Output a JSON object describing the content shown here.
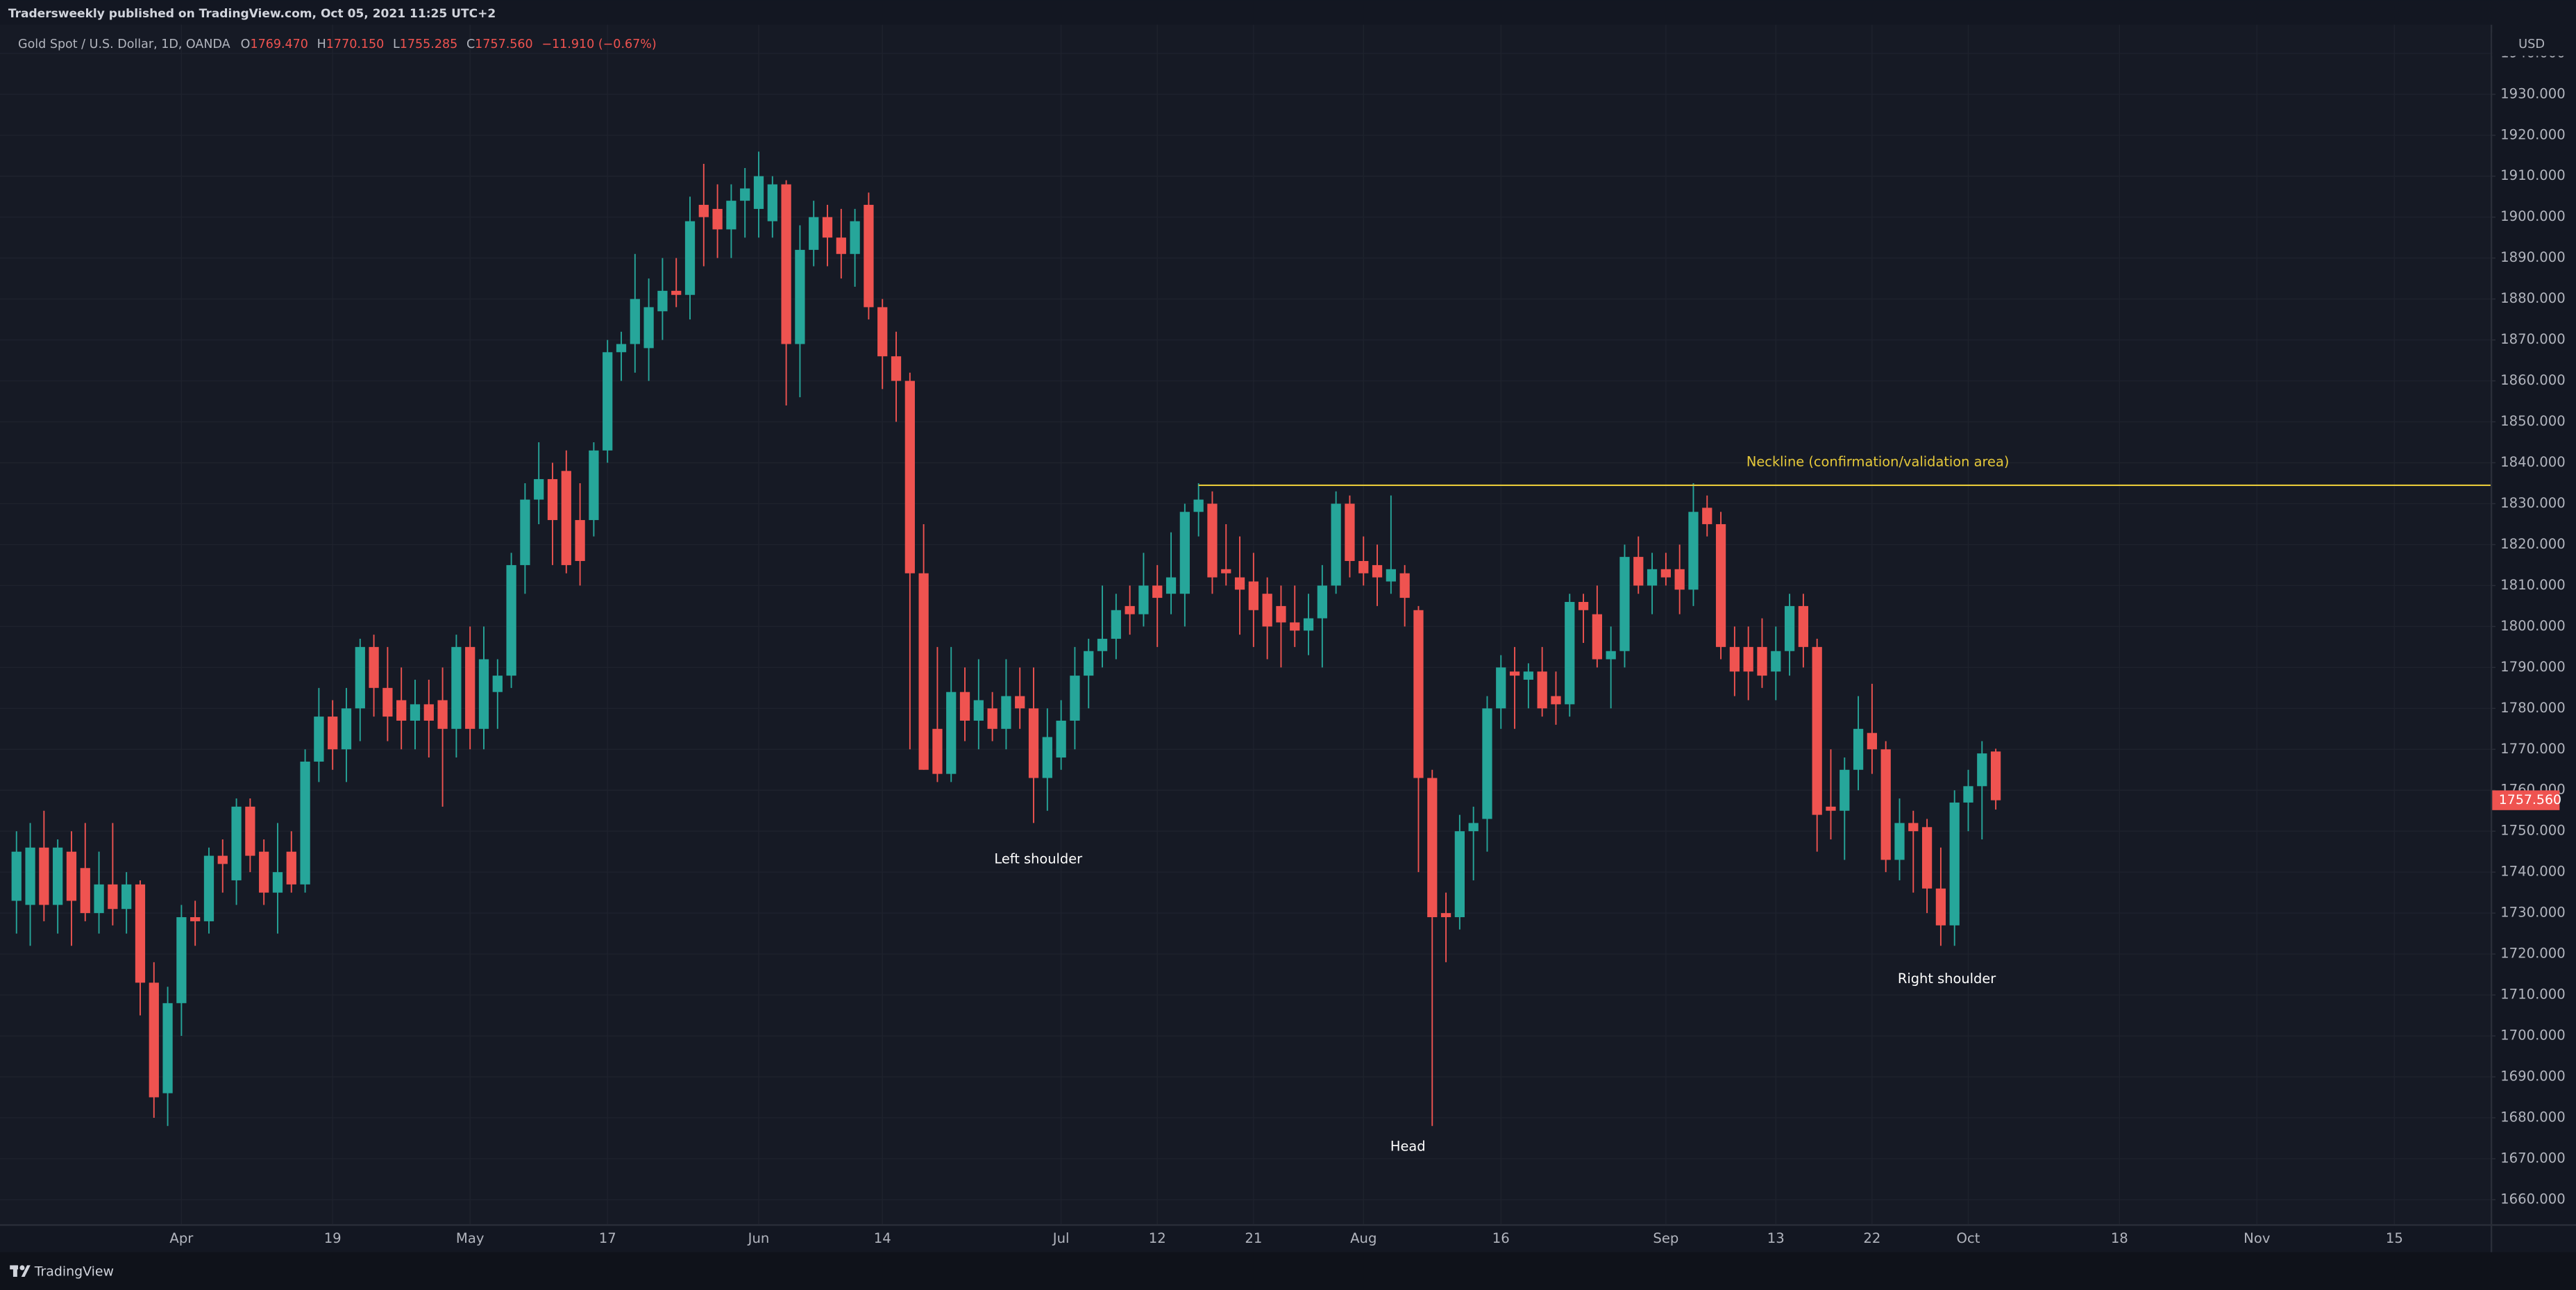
{
  "header": {
    "byline": "Tradersweekly published on TradingView.com, Oct 05, 2021 11:25 UTC+2",
    "symbol": "Gold Spot / U.S. Dollar, 1D, OANDA",
    "ohlc_letters": [
      "O",
      "H",
      "L",
      "C"
    ],
    "ohlc_values": [
      "1769.470",
      "1770.150",
      "1755.285",
      "1757.560"
    ],
    "change": "−11.910 (−0.67%)"
  },
  "chart_data": {
    "type": "candlestick",
    "up_color": "#26a69a",
    "down_color": "#ef5350",
    "open": [
      1733,
      1732,
      1746,
      1732,
      1745,
      1741,
      1730,
      1737,
      1731,
      1737,
      1713,
      1686,
      1708,
      1729,
      1728,
      1744,
      1738,
      1756,
      1745,
      1735,
      1745,
      1737,
      1767,
      1778,
      1770,
      1780,
      1795,
      1785,
      1782,
      1777,
      1781,
      1782,
      1775,
      1795,
      1775,
      1784,
      1788,
      1815,
      1831,
      1836,
      1838,
      1826,
      1826,
      1843,
      1867,
      1869,
      1868,
      1877,
      1882,
      1881,
      1903,
      1902,
      1897,
      1904,
      1902,
      1899,
      1908,
      1869,
      1892,
      1900,
      1895,
      1891,
      1903,
      1878,
      1866,
      1860,
      1813,
      1775,
      1764,
      1784,
      1777,
      1780,
      1775,
      1783,
      1780,
      1763,
      1768,
      1777,
      1788,
      1794,
      1797,
      1805,
      1803,
      1810,
      1808,
      1808,
      1828,
      1830,
      1814,
      1812,
      1811,
      1808,
      1805,
      1801,
      1799,
      1802,
      1810,
      1830,
      1816,
      1815,
      1811,
      1813,
      1804,
      1763,
      1730,
      1729,
      1750,
      1753,
      1780,
      1789,
      1787,
      1789,
      1783,
      1781,
      1806,
      1803,
      1792,
      1794,
      1817,
      1810,
      1814,
      1814,
      1809,
      1829,
      1825,
      1795,
      1795,
      1795,
      1789,
      1794,
      1805,
      1795,
      1756,
      1755,
      1765,
      1774,
      1770,
      1743,
      1752,
      1751,
      1736,
      1727,
      1757,
      1761,
      1769.47
    ],
    "high": [
      1750,
      1752,
      1755,
      1748,
      1750,
      1752,
      1745,
      1752,
      1740,
      1738,
      1718,
      1712,
      1732,
      1733,
      1746,
      1748,
      1758,
      1758,
      1748,
      1752,
      1750,
      1770,
      1785,
      1782,
      1785,
      1797,
      1798,
      1795,
      1790,
      1787,
      1787,
      1790,
      1798,
      1800,
      1800,
      1792,
      1818,
      1835,
      1845,
      1840,
      1843,
      1835,
      1845,
      1870,
      1872,
      1891,
      1885,
      1890,
      1890,
      1905,
      1913,
      1908,
      1908,
      1912,
      1916,
      1910,
      1909,
      1898,
      1904,
      1903,
      1902,
      1902,
      1906,
      1880,
      1872,
      1862,
      1825,
      1795,
      1795,
      1790,
      1792,
      1784,
      1792,
      1790,
      1790,
      1780,
      1782,
      1795,
      1797,
      1810,
      1808,
      1810,
      1818,
      1815,
      1823,
      1830,
      1835,
      1833,
      1825,
      1822,
      1818,
      1812,
      1810,
      1810,
      1808,
      1815,
      1833,
      1832,
      1822,
      1820,
      1832,
      1815,
      1805,
      1765,
      1735,
      1754,
      1756,
      1783,
      1793,
      1795,
      1791,
      1795,
      1789,
      1808,
      1808,
      1810,
      1800,
      1820,
      1822,
      1818,
      1818,
      1820,
      1835,
      1832,
      1828,
      1800,
      1800,
      1802,
      1800,
      1808,
      1808,
      1797,
      1770,
      1768,
      1783,
      1786,
      1772,
      1758,
      1755,
      1753,
      1746,
      1760,
      1765,
      1772,
      1770.15
    ],
    "low": [
      1725,
      1722,
      1728,
      1725,
      1722,
      1728,
      1725,
      1727,
      1725,
      1705,
      1680,
      1678,
      1700,
      1722,
      1725,
      1735,
      1732,
      1740,
      1732,
      1725,
      1735,
      1735,
      1762,
      1765,
      1762,
      1772,
      1778,
      1772,
      1770,
      1770,
      1768,
      1756,
      1768,
      1770,
      1770,
      1775,
      1785,
      1808,
      1825,
      1815,
      1813,
      1810,
      1822,
      1840,
      1860,
      1862,
      1860,
      1870,
      1878,
      1875,
      1888,
      1890,
      1890,
      1895,
      1895,
      1895,
      1854,
      1856,
      1888,
      1888,
      1885,
      1883,
      1875,
      1858,
      1850,
      1770,
      1765,
      1762,
      1762,
      1772,
      1770,
      1772,
      1770,
      1775,
      1752,
      1755,
      1765,
      1770,
      1780,
      1790,
      1792,
      1798,
      1800,
      1795,
      1803,
      1800,
      1822,
      1808,
      1810,
      1798,
      1795,
      1792,
      1790,
      1795,
      1793,
      1790,
      1808,
      1812,
      1810,
      1805,
      1808,
      1800,
      1740,
      1678,
      1718,
      1726,
      1738,
      1745,
      1775,
      1775,
      1780,
      1778,
      1776,
      1778,
      1796,
      1790,
      1780,
      1790,
      1808,
      1803,
      1810,
      1803,
      1805,
      1822,
      1792,
      1783,
      1782,
      1785,
      1782,
      1788,
      1790,
      1745,
      1748,
      1743,
      1760,
      1764,
      1740,
      1738,
      1735,
      1730,
      1722,
      1722,
      1750,
      1748,
      1755.285
    ],
    "close": [
      1745,
      1746,
      1732,
      1746,
      1733,
      1730,
      1737,
      1731,
      1737,
      1713,
      1685,
      1708,
      1729,
      1728,
      1744,
      1742,
      1756,
      1744,
      1735,
      1740,
      1737,
      1767,
      1778,
      1770,
      1780,
      1795,
      1785,
      1778,
      1777,
      1781,
      1777,
      1775,
      1795,
      1775,
      1792,
      1788,
      1815,
      1831,
      1836,
      1826,
      1815,
      1816,
      1843,
      1867,
      1869,
      1880,
      1878,
      1882,
      1881,
      1899,
      1900,
      1897,
      1904,
      1907,
      1910,
      1908,
      1869,
      1892,
      1900,
      1895,
      1891,
      1899,
      1878,
      1866,
      1860,
      1813,
      1765,
      1764,
      1784,
      1777,
      1782,
      1775,
      1783,
      1780,
      1763,
      1773,
      1777,
      1788,
      1794,
      1797,
      1804,
      1803,
      1810,
      1807,
      1812,
      1828,
      1831,
      1812,
      1813,
      1809,
      1804,
      1800,
      1801,
      1799,
      1802,
      1810,
      1830,
      1816,
      1813,
      1812,
      1814,
      1807,
      1763,
      1729,
      1729,
      1750,
      1752,
      1780,
      1790,
      1788,
      1789,
      1780,
      1781,
      1806,
      1804,
      1792,
      1794,
      1817,
      1810,
      1814,
      1812,
      1809,
      1828,
      1825,
      1795,
      1789,
      1789,
      1788,
      1794,
      1805,
      1795,
      1754,
      1755,
      1765,
      1775,
      1770,
      1743,
      1752,
      1750,
      1736,
      1727,
      1757,
      1761,
      1769,
      1757.56
    ],
    "xlim": [
      -1.2,
      180
    ],
    "xticks": [
      {
        "value": 12,
        "label": "Apr"
      },
      {
        "value": 23,
        "label": "19"
      },
      {
        "value": 33,
        "label": "May"
      },
      {
        "value": 43,
        "label": "17"
      },
      {
        "value": 54,
        "label": "Jun"
      },
      {
        "value": 63,
        "label": "14"
      },
      {
        "value": 76,
        "label": "Jul"
      },
      {
        "value": 83,
        "label": "12"
      },
      {
        "value": 90,
        "label": "21"
      },
      {
        "value": 98,
        "label": "Aug"
      },
      {
        "value": 108,
        "label": "16"
      },
      {
        "value": 120,
        "label": "Sep"
      },
      {
        "value": 128,
        "label": "13"
      },
      {
        "value": 135,
        "label": "22"
      },
      {
        "value": 142,
        "label": "Oct"
      },
      {
        "value": 153,
        "label": "18"
      },
      {
        "value": 163,
        "label": "Nov"
      },
      {
        "value": 173,
        "label": "15"
      }
    ],
    "ylim": [
      1654,
      1947
    ],
    "yticks": [
      {
        "value": 1660,
        "label": "1660.000"
      },
      {
        "value": 1670,
        "label": "1670.000"
      },
      {
        "value": 1680,
        "label": "1680.000"
      },
      {
        "value": 1690,
        "label": "1690.000"
      },
      {
        "value": 1700,
        "label": "1700.000"
      },
      {
        "value": 1710,
        "label": "1710.000"
      },
      {
        "value": 1720,
        "label": "1720.000"
      },
      {
        "value": 1730,
        "label": "1730.000"
      },
      {
        "value": 1740,
        "label": "1740.000"
      },
      {
        "value": 1750,
        "label": "1750.000"
      },
      {
        "value": 1760,
        "label": "1760.000"
      },
      {
        "value": 1770,
        "label": "1770.000"
      },
      {
        "value": 1780,
        "label": "1780.000"
      },
      {
        "value": 1790,
        "label": "1790.000"
      },
      {
        "value": 1800,
        "label": "1800.000"
      },
      {
        "value": 1810,
        "label": "1810.000"
      },
      {
        "value": 1820,
        "label": "1820.000"
      },
      {
        "value": 1830,
        "label": "1830.000"
      },
      {
        "value": 1840,
        "label": "1840.000"
      },
      {
        "value": 1850,
        "label": "1850.000"
      },
      {
        "value": 1860,
        "label": "1860.000"
      },
      {
        "value": 1870,
        "label": "1870.000"
      },
      {
        "value": 1880,
        "label": "1880.000"
      },
      {
        "value": 1890,
        "label": "1890.000"
      },
      {
        "value": 1900,
        "label": "1900.000"
      },
      {
        "value": 1910,
        "label": "1910.000"
      },
      {
        "value": 1920,
        "label": "1920.000"
      },
      {
        "value": 1930,
        "label": "1930.000"
      },
      {
        "value": 1940,
        "label": "1940.000"
      }
    ],
    "grid": true,
    "currency": "USD",
    "price_tag": "1757.560",
    "neckline": {
      "label": "Neckline (confirmation/validation area)",
      "value": 1834.5,
      "start": 86,
      "color": "#e6c93a"
    },
    "annotations": [
      "Left shoulder",
      "Head",
      "Right shoulder"
    ]
  },
  "footer": {
    "brand": "TradingView"
  }
}
